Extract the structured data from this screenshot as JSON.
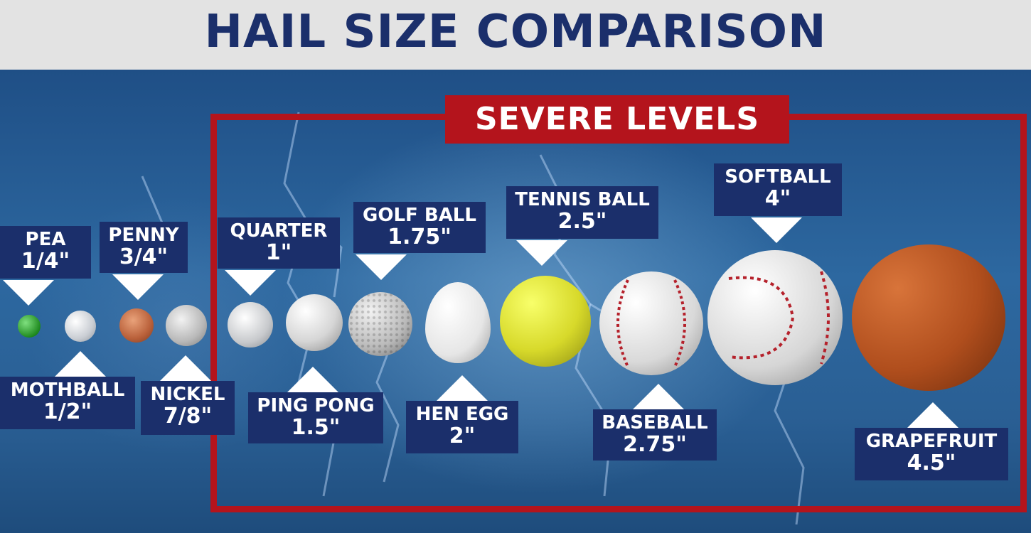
{
  "title": "HAIL SIZE COMPARISON",
  "severe_label": "SEVERE LEVELS",
  "items": [
    {
      "name": "PEA",
      "size": "1/4\""
    },
    {
      "name": "MOTHBALL",
      "size": "1/2\""
    },
    {
      "name": "PENNY",
      "size": "3/4\""
    },
    {
      "name": "NICKEL",
      "size": "7/8\""
    },
    {
      "name": "QUARTER",
      "size": "1\""
    },
    {
      "name": "PING PONG",
      "size": "1.5\""
    },
    {
      "name": "GOLF BALL",
      "size": "1.75\""
    },
    {
      "name": "HEN EGG",
      "size": "2\""
    },
    {
      "name": "TENNIS BALL",
      "size": "2.5\""
    },
    {
      "name": "BASEBALL",
      "size": "2.75\""
    },
    {
      "name": "SOFTBALL",
      "size": "4\""
    },
    {
      "name": "GRAPEFRUIT",
      "size": "4.5\""
    }
  ],
  "colors": {
    "title_text": "#1b2f6b",
    "label_bg": "#1b2f6b",
    "severe_red": "#b4141c",
    "background_blue": "#2a5f94"
  }
}
